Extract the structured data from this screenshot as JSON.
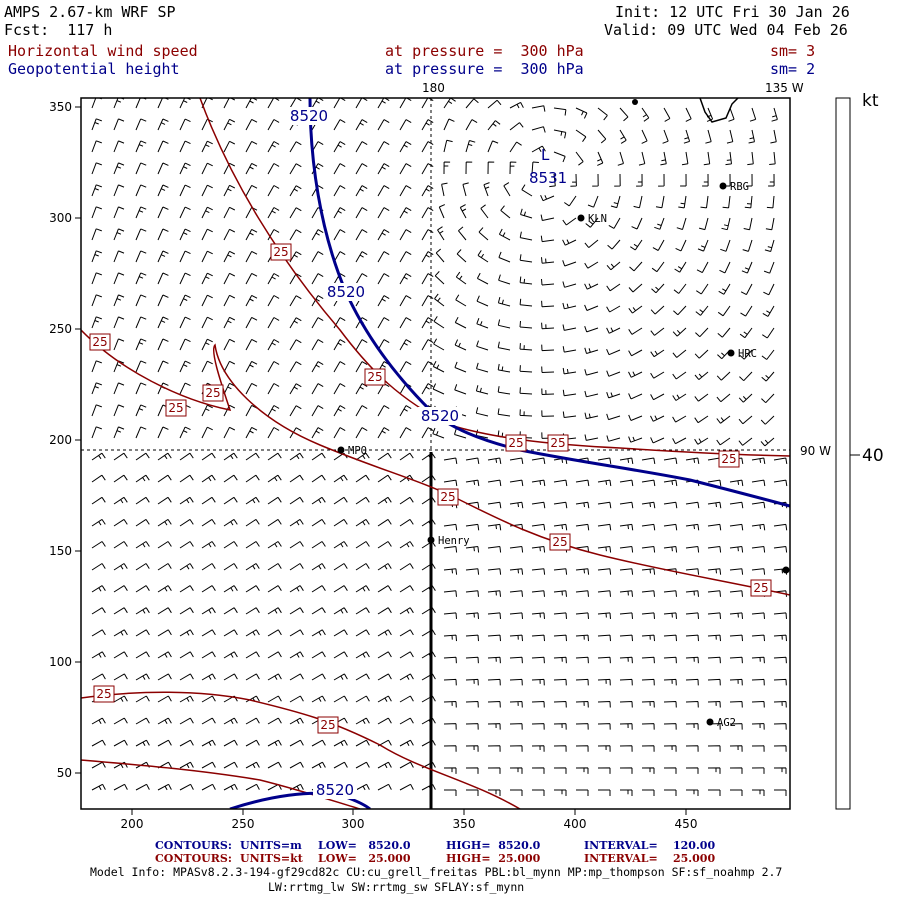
{
  "header": {
    "model_title": "AMPS 2.67-km WRF SP",
    "forecast": "Fcst:  117 h",
    "init": "Init: 12 UTC Fri 30 Jan 26",
    "valid": "Valid: 09 UTC Wed 04 Feb 26"
  },
  "fields": [
    {
      "name": "Horizontal wind speed",
      "level": "at pressure =  300 hPa",
      "smooth": "sm= 3"
    },
    {
      "name": "Geopotential height",
      "level": "at pressure =  300 hPa",
      "smooth": "sm= 2"
    }
  ],
  "map": {
    "x_ticks": [
      "200",
      "250",
      "300",
      "350",
      "400",
      "450"
    ],
    "y_ticks": [
      "350",
      "300",
      "250",
      "200",
      "150",
      "100",
      "50"
    ],
    "lon_labels": {
      "top_180": "180",
      "top_135w": "135 W",
      "right_90w": "90 W"
    },
    "stations": [
      "MPO",
      "KLN",
      "RBG",
      "HRC",
      "Henry",
      "AG2"
    ],
    "contour_labels_speed": [
      "25",
      "25",
      "25",
      "25",
      "25",
      "25",
      "25",
      "25",
      "25",
      "25",
      "25",
      "25",
      "25"
    ],
    "contour_labels_height": [
      "8520",
      "8520",
      "8520",
      "8520"
    ],
    "low_marker": "L",
    "low_value": "8531"
  },
  "colorbar": {
    "unit": "kt",
    "value": "40"
  },
  "footer": {
    "row1": {
      "title": "CONTOURS:",
      "units": "UNITS=m",
      "low": "LOW=   8520.0",
      "high": "HIGH=  8520.0",
      "interval": "INTERVAL=    120.00"
    },
    "row2": {
      "title": "CONTOURS:",
      "units": "UNITS=kt",
      "low": "LOW=   25.000",
      "high": "HIGH=  25.000",
      "interval": "INTERVAL=    25.000"
    },
    "model_info_1": "Model Info: MPASv8.2.3-194-gf29cd82c CU:cu_grell_freitas PBL:bl_mynn MP:mp_thompson SF:sf_noahmp 2.7",
    "model_info_2": "LW:rrtmg_lw SW:rrtmg_sw SFLAY:sf_mynn"
  },
  "colors": {
    "speed_contour": "#8b0000",
    "height_contour": "#00008b",
    "barbs": "#000000"
  }
}
